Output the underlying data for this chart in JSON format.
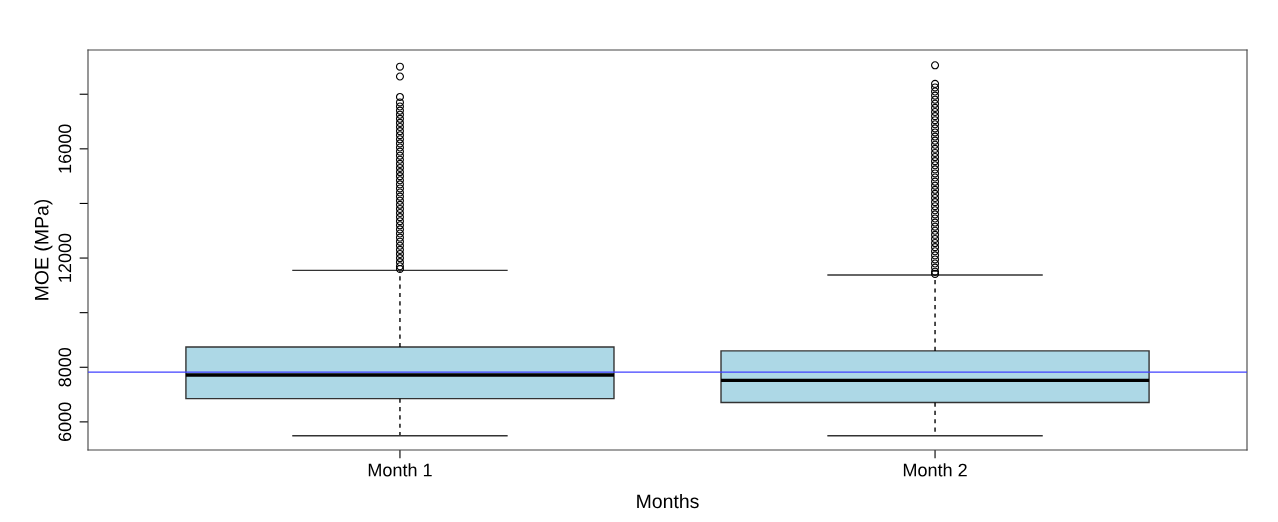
{
  "chart_data": {
    "type": "box",
    "xlabel": "Months",
    "ylabel": "MOE (MPa)",
    "categories": [
      "Month 1",
      "Month 2"
    ],
    "color": "#add8e6",
    "boxes": [
      {
        "low": 5490,
        "q1": 6850,
        "median": 7720,
        "q3": 8740,
        "high": 11550,
        "outliers": [
          19010,
          18650,
          17900,
          17700,
          17550,
          17400,
          17250,
          17100,
          16950,
          16800,
          16650,
          16500,
          16350,
          16200,
          16050,
          15900,
          15750,
          15600,
          15450,
          15300,
          15150,
          15000,
          14850,
          14700,
          14550,
          14400,
          14250,
          14100,
          13950,
          13800,
          13650,
          13500,
          13350,
          13200,
          13050,
          12900,
          12750,
          12600,
          12450,
          12300,
          12150,
          12000,
          11850,
          11700,
          11600
        ]
      },
      {
        "low": 5490,
        "q1": 6710,
        "median": 7520,
        "q3": 8600,
        "high": 11380,
        "outliers": [
          19060,
          18380,
          18250,
          18100,
          17950,
          17800,
          17650,
          17500,
          17350,
          17200,
          17050,
          16900,
          16750,
          16600,
          16450,
          16300,
          16150,
          16000,
          15850,
          15700,
          15550,
          15400,
          15250,
          15100,
          14950,
          14800,
          14650,
          14500,
          14350,
          14200,
          14050,
          13900,
          13750,
          13600,
          13450,
          13300,
          13150,
          13000,
          12850,
          12700,
          12550,
          12400,
          12250,
          12100,
          11950,
          11800,
          11650,
          11500,
          11420
        ]
      }
    ],
    "ylim": [
      4970,
      19620
    ],
    "yticks": [
      6000,
      8000,
      {
        "value": 10000,
        "label": null
      },
      12000,
      {
        "value": 14000,
        "label": null
      },
      16000,
      {
        "value": 18000,
        "label": null
      }
    ],
    "ref_lines": [
      {
        "axis": "y",
        "value": 7820,
        "color": "#4040ff"
      }
    ]
  }
}
